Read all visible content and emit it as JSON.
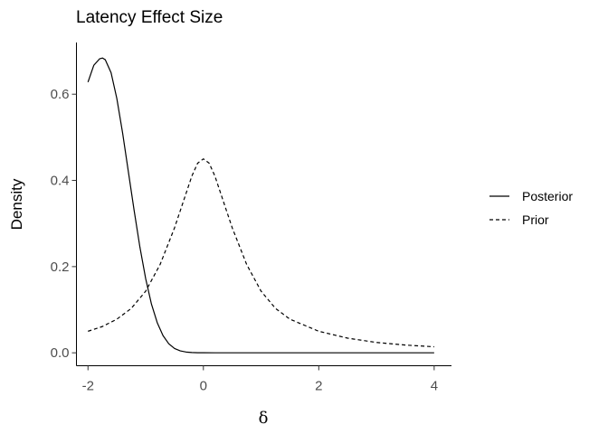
{
  "chart_data": {
    "type": "line",
    "title": "Latency Effect Size",
    "xlabel": "δ",
    "ylabel": "Density",
    "xlim": [
      -2.2,
      4.3
    ],
    "ylim": [
      -0.03,
      0.72
    ],
    "xticks": [
      -2,
      0,
      2,
      4
    ],
    "xtick_labels": [
      "-2",
      "0",
      "2",
      "4"
    ],
    "yticks": [
      0.0,
      0.2,
      0.4,
      0.6
    ],
    "ytick_labels": [
      "0.0",
      "0.2",
      "0.4",
      "0.6"
    ],
    "grid": false,
    "legend_position": "right",
    "series": [
      {
        "name": "Posterior",
        "line_style": "solid",
        "color": "#000000",
        "x": [
          -2.0,
          -1.9,
          -1.8,
          -1.75,
          -1.7,
          -1.6,
          -1.5,
          -1.4,
          -1.3,
          -1.2,
          -1.1,
          -1.0,
          -0.9,
          -0.8,
          -0.7,
          -0.6,
          -0.5,
          -0.4,
          -0.3,
          -0.2,
          -0.1,
          0.0,
          0.2,
          0.5,
          1.0,
          2.0,
          3.0,
          4.0
        ],
        "y": [
          0.628,
          0.667,
          0.682,
          0.684,
          0.68,
          0.65,
          0.59,
          0.51,
          0.42,
          0.33,
          0.245,
          0.172,
          0.113,
          0.07,
          0.04,
          0.021,
          0.01,
          0.0045,
          0.0018,
          0.0007,
          0.0002,
          0.0001,
          0.0,
          0.0,
          0.0,
          0.0,
          0.0,
          0.0
        ]
      },
      {
        "name": "Prior",
        "line_style": "dashed",
        "color": "#000000",
        "x": [
          -2.0,
          -1.75,
          -1.5,
          -1.25,
          -1.0,
          -0.75,
          -0.5,
          -0.4,
          -0.3,
          -0.2,
          -0.1,
          0.0,
          0.1,
          0.2,
          0.3,
          0.4,
          0.5,
          0.75,
          1.0,
          1.25,
          1.5,
          2.0,
          2.5,
          3.0,
          3.5,
          4.0
        ],
        "y": [
          0.05,
          0.061,
          0.078,
          0.103,
          0.143,
          0.205,
          0.29,
          0.33,
          0.37,
          0.41,
          0.44,
          0.45,
          0.44,
          0.41,
          0.37,
          0.33,
          0.29,
          0.205,
          0.143,
          0.103,
          0.078,
          0.05,
          0.034,
          0.024,
          0.018,
          0.014
        ]
      }
    ]
  }
}
